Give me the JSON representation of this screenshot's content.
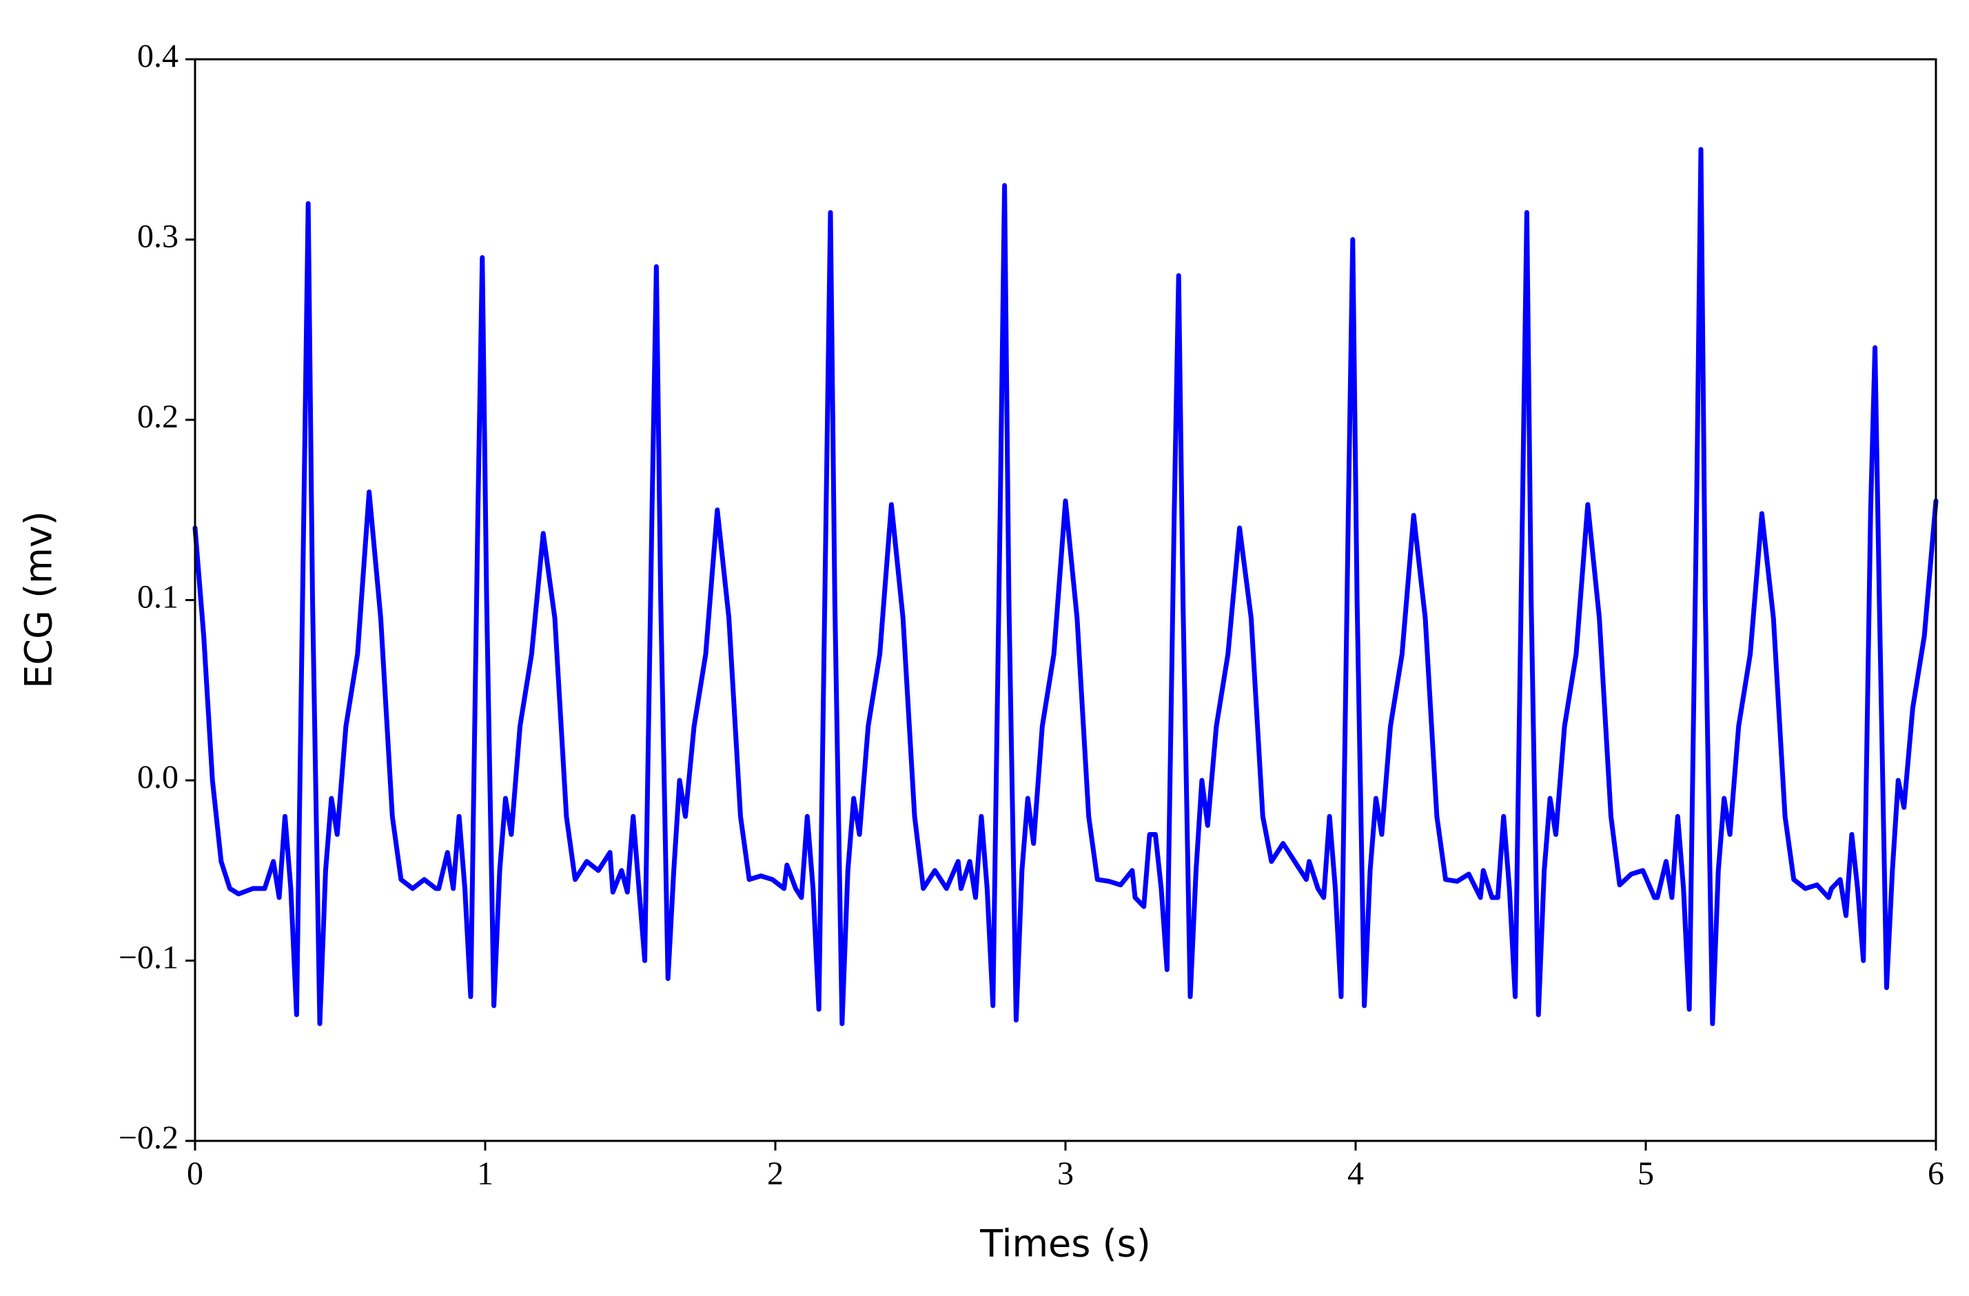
{
  "chart_data": {
    "type": "line",
    "x_label": "Times (s)",
    "y_label": "ECG (mv)",
    "color": "#0000ff",
    "x": [
      0,
      0.03,
      0.06,
      0.09,
      0.12,
      0.15,
      0.2,
      0.24,
      0.27,
      0.29,
      0.31,
      0.33,
      0.35,
      0.375,
      0.39,
      0.405,
      0.43,
      0.45,
      0.47,
      0.49,
      0.52,
      0.56,
      0.6,
      0.64,
      0.68,
      0.71,
      0.75,
      0.79,
      0.83,
      0.84,
      0.87,
      0.89,
      0.91,
      0.93,
      0.95,
      0.975,
      0.99,
      1.005,
      1.03,
      1.05,
      1.07,
      1.09,
      1.12,
      1.16,
      1.2,
      1.24,
      1.28,
      1.31,
      1.35,
      1.39,
      1.43,
      1.44,
      1.47,
      1.49,
      1.51,
      1.53,
      1.55,
      1.575,
      1.59,
      1.605,
      1.63,
      1.65,
      1.67,
      1.69,
      1.72,
      1.76,
      1.8,
      1.84,
      1.88,
      1.91,
      1.95,
      1.99,
      2.03,
      2.04,
      2.07,
      2.09,
      2.11,
      2.13,
      2.15,
      2.175,
      2.19,
      2.205,
      2.23,
      2.25,
      2.27,
      2.29,
      2.32,
      2.36,
      2.4,
      2.44,
      2.48,
      2.51,
      2.55,
      2.59,
      2.63,
      2.64,
      2.67,
      2.69,
      2.71,
      2.73,
      2.75,
      2.775,
      2.79,
      2.805,
      2.83,
      2.85,
      2.87,
      2.89,
      2.92,
      2.96,
      3.0,
      3.04,
      3.08,
      3.11,
      3.15,
      3.19,
      3.23,
      3.24,
      3.27,
      3.29,
      3.31,
      3.33,
      3.35,
      3.375,
      3.39,
      3.405,
      3.43,
      3.45,
      3.47,
      3.49,
      3.52,
      3.56,
      3.6,
      3.64,
      3.68,
      3.71,
      3.75,
      3.79,
      3.83,
      3.84,
      3.87,
      3.89,
      3.91,
      3.93,
      3.95,
      3.975,
      3.99,
      4.005,
      4.03,
      4.05,
      4.07,
      4.09,
      4.12,
      4.16,
      4.2,
      4.24,
      4.28,
      4.31,
      4.35,
      4.39,
      4.43,
      4.44,
      4.47,
      4.49,
      4.51,
      4.53,
      4.55,
      4.575,
      4.59,
      4.605,
      4.63,
      4.65,
      4.67,
      4.69,
      4.72,
      4.76,
      4.8,
      4.84,
      4.88,
      4.91,
      4.95,
      4.99,
      5.03,
      5.04,
      5.07,
      5.09,
      5.11,
      5.13,
      5.15,
      5.175,
      5.19,
      5.205,
      5.23,
      5.25,
      5.27,
      5.29,
      5.32,
      5.36,
      5.4,
      5.44,
      5.48,
      5.51,
      5.55,
      5.59,
      5.63,
      5.64,
      5.67,
      5.69,
      5.71,
      5.73,
      5.75,
      5.775,
      5.79,
      5.805,
      5.83,
      5.85,
      5.87,
      5.89,
      5.92,
      5.96,
      6.0
    ],
    "values": [
      0.14,
      0.08,
      0.0,
      -0.045,
      -0.06,
      -0.063,
      -0.06,
      -0.06,
      -0.045,
      -0.065,
      -0.02,
      -0.06,
      -0.13,
      0.15,
      0.32,
      0.1,
      -0.135,
      -0.05,
      -0.01,
      -0.03,
      0.03,
      0.07,
      0.16,
      0.09,
      -0.02,
      -0.055,
      -0.06,
      -0.055,
      -0.06,
      -0.06,
      -0.04,
      -0.06,
      -0.02,
      -0.06,
      -0.12,
      0.15,
      0.29,
      0.1,
      -0.125,
      -0.05,
      -0.01,
      -0.03,
      0.03,
      0.07,
      0.137,
      0.09,
      -0.02,
      -0.055,
      -0.045,
      -0.05,
      -0.04,
      -0.062,
      -0.05,
      -0.062,
      -0.02,
      -0.06,
      -0.1,
      0.15,
      0.285,
      0.1,
      -0.11,
      -0.05,
      0.0,
      -0.02,
      0.03,
      0.07,
      0.15,
      0.09,
      -0.02,
      -0.055,
      -0.053,
      -0.055,
      -0.06,
      -0.047,
      -0.06,
      -0.065,
      -0.02,
      -0.06,
      -0.127,
      0.15,
      0.315,
      0.1,
      -0.135,
      -0.05,
      -0.01,
      -0.03,
      0.03,
      0.07,
      0.153,
      0.09,
      -0.02,
      -0.06,
      -0.05,
      -0.06,
      -0.045,
      -0.06,
      -0.045,
      -0.065,
      -0.02,
      -0.06,
      -0.125,
      0.15,
      0.33,
      0.1,
      -0.133,
      -0.05,
      -0.01,
      -0.035,
      0.03,
      0.07,
      0.155,
      0.09,
      -0.02,
      -0.055,
      -0.056,
      -0.058,
      -0.05,
      -0.065,
      -0.07,
      -0.03,
      -0.03,
      -0.06,
      -0.105,
      0.15,
      0.28,
      0.1,
      -0.12,
      -0.05,
      0.0,
      -0.025,
      0.03,
      0.07,
      0.14,
      0.09,
      -0.02,
      -0.045,
      -0.035,
      -0.045,
      -0.055,
      -0.045,
      -0.06,
      -0.065,
      -0.02,
      -0.06,
      -0.12,
      0.15,
      0.3,
      0.1,
      -0.125,
      -0.05,
      -0.01,
      -0.03,
      0.03,
      0.07,
      0.147,
      0.09,
      -0.02,
      -0.055,
      -0.056,
      -0.052,
      -0.065,
      -0.05,
      -0.065,
      -0.065,
      -0.02,
      -0.06,
      -0.12,
      0.15,
      0.315,
      0.1,
      -0.13,
      -0.05,
      -0.01,
      -0.03,
      0.03,
      0.07,
      0.153,
      0.09,
      -0.02,
      -0.058,
      -0.052,
      -0.05,
      -0.065,
      -0.065,
      -0.045,
      -0.065,
      -0.02,
      -0.06,
      -0.127,
      0.15,
      0.35,
      0.1,
      -0.135,
      -0.05,
      -0.01,
      -0.03,
      0.03,
      0.07,
      0.148,
      0.09,
      -0.02,
      -0.055,
      -0.06,
      -0.058,
      -0.065,
      -0.06,
      -0.055,
      -0.075,
      -0.03,
      -0.06,
      -0.1,
      0.15,
      0.24,
      0.1,
      -0.115,
      -0.05,
      0.0,
      -0.015,
      0.04,
      0.08,
      0.155
    ],
    "xlim": [
      0,
      6
    ],
    "ylim": [
      -0.2,
      0.4
    ],
    "xticks": [
      0,
      1,
      2,
      3,
      4,
      5,
      6
    ],
    "yticks": [
      {
        "value": -0.2,
        "label": "−0.2"
      },
      {
        "value": -0.1,
        "label": "−0.1"
      },
      {
        "value": 0,
        "label": "0.0"
      },
      0.1,
      0.2,
      0.3,
      0.4
    ]
  }
}
